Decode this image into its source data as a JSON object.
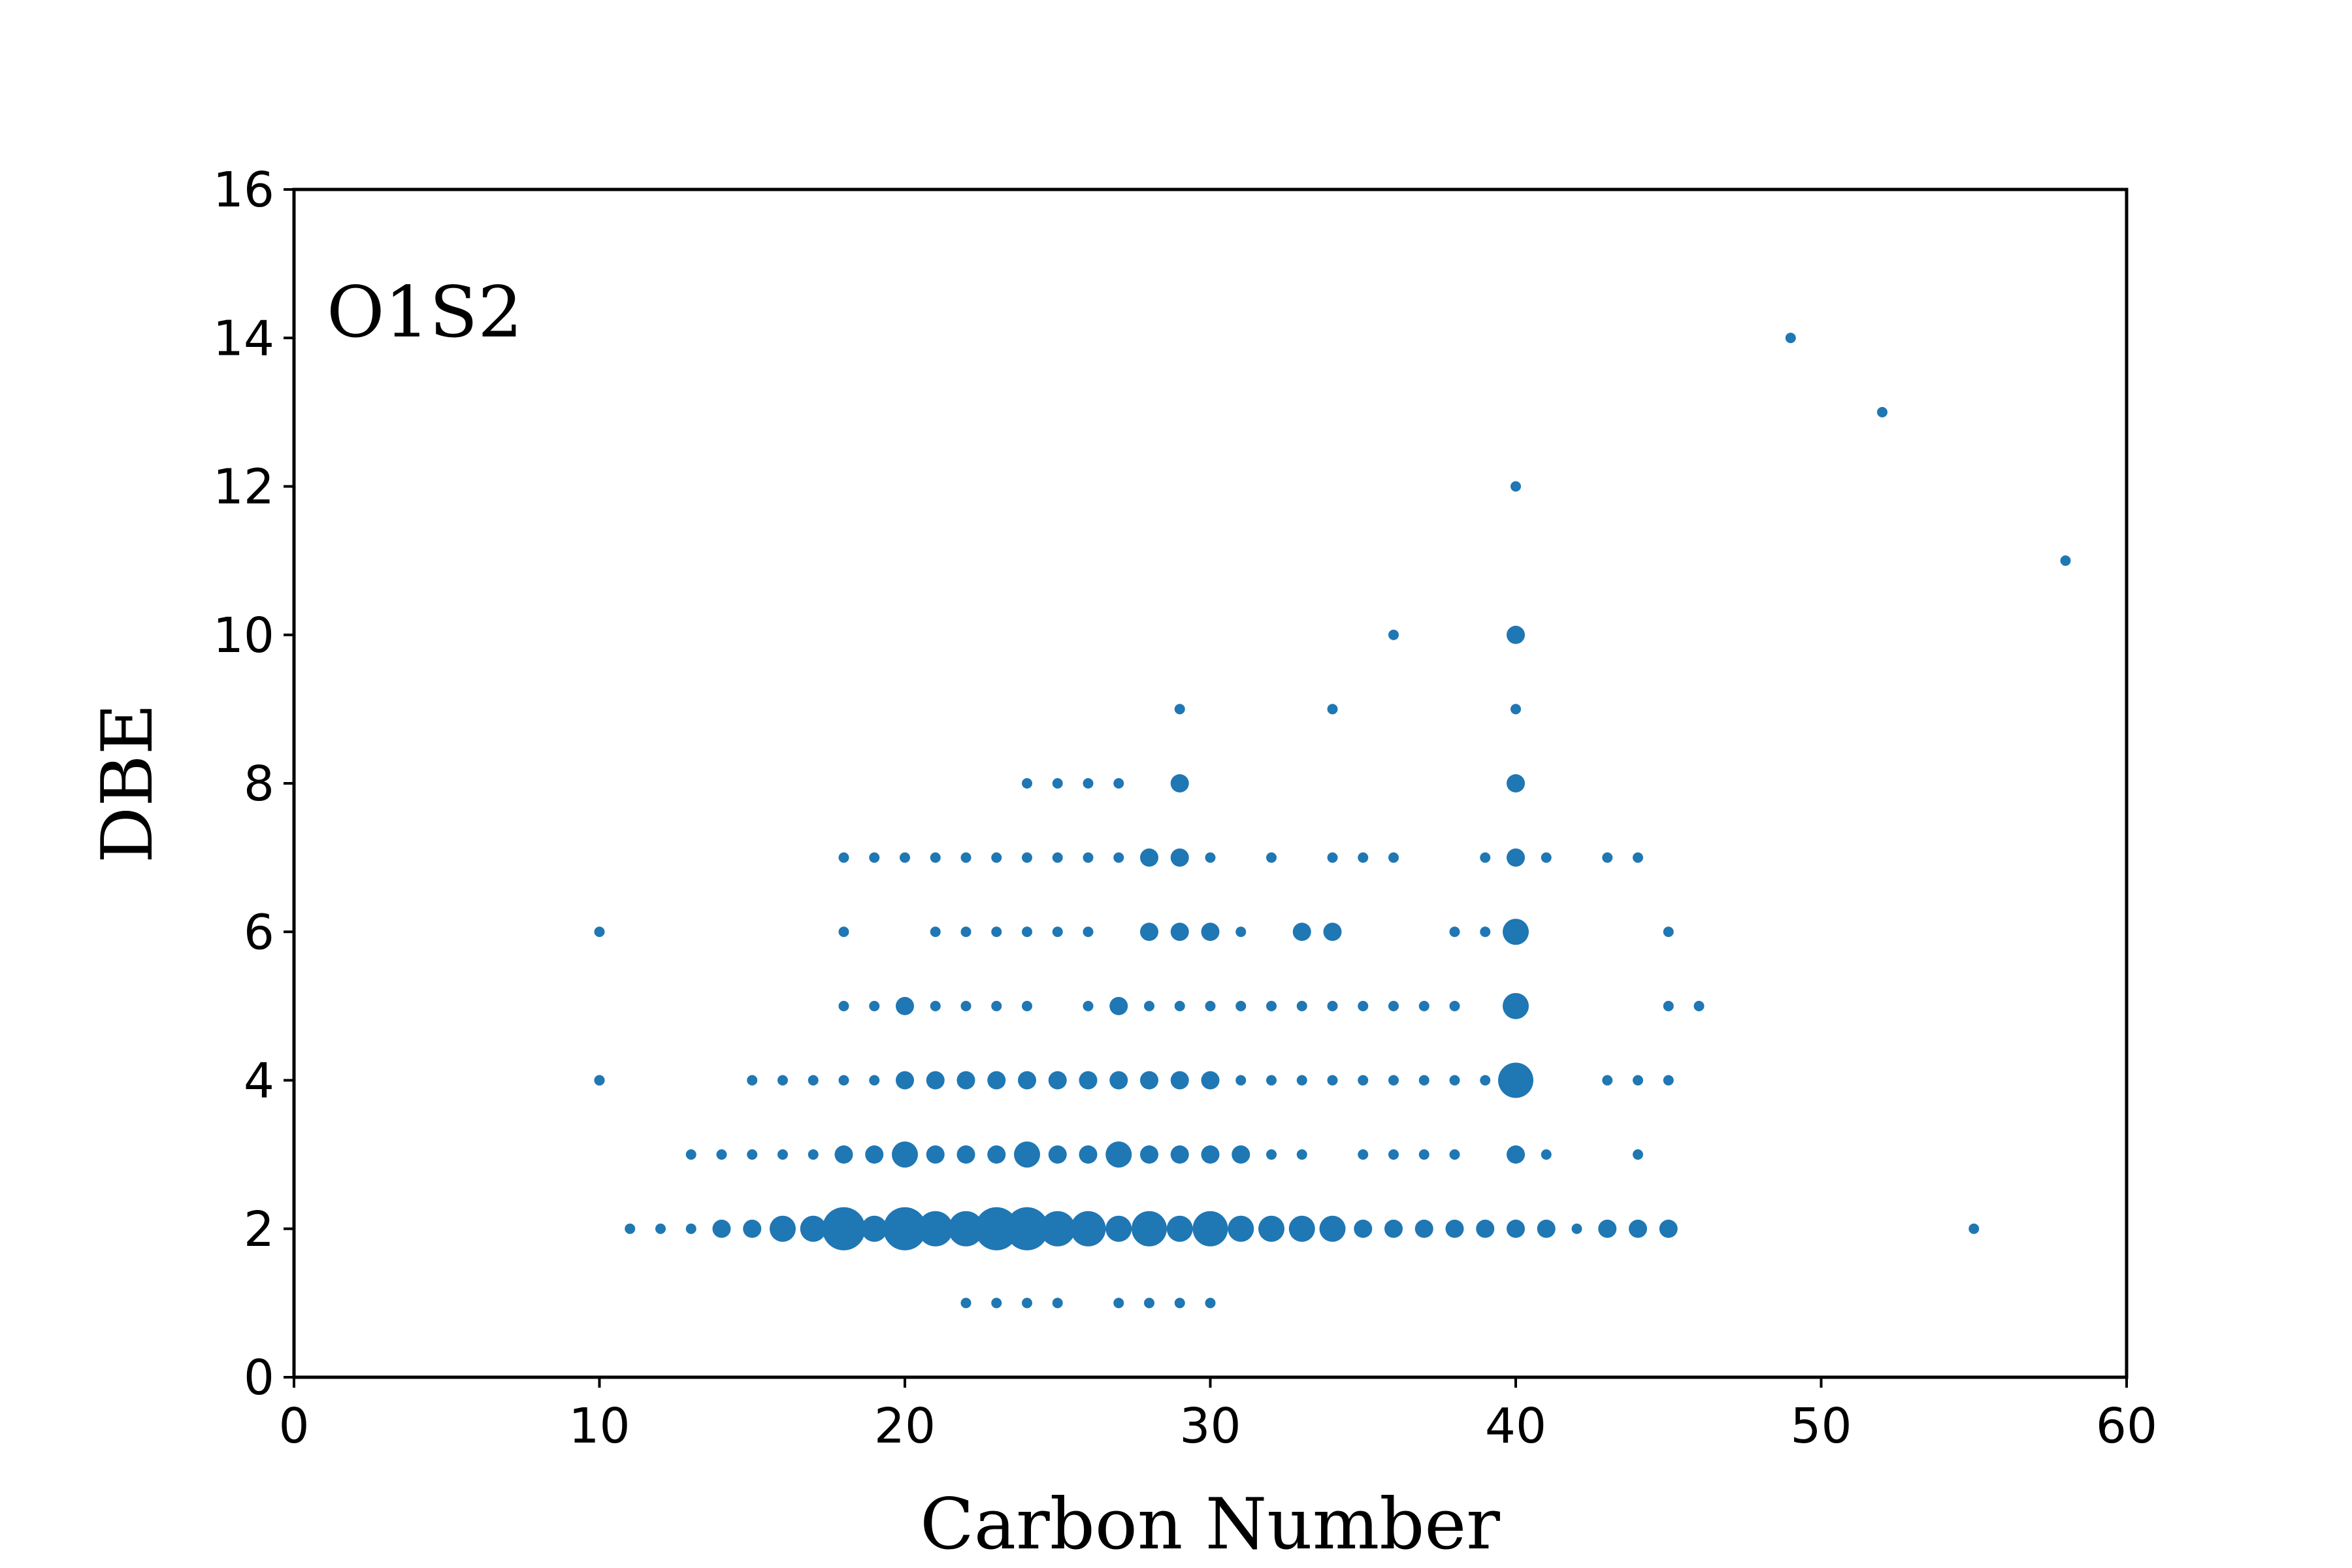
{
  "chart_data": {
    "type": "scatter",
    "title": "",
    "annotation": "O1S2",
    "xlabel": "Carbon Number",
    "ylabel": "DBE",
    "xlim": [
      0,
      60
    ],
    "ylim": [
      0,
      16
    ],
    "xticks": [
      0,
      10,
      20,
      30,
      40,
      50,
      60
    ],
    "yticks": [
      0,
      2,
      4,
      6,
      8,
      10,
      12,
      14,
      16
    ],
    "grid": false,
    "marker_color": "#1f77b4",
    "size_note": "marker size reflects relative abundance (1 = smallest, 5 = largest)",
    "points": [
      {
        "x": 10,
        "y": 6,
        "s": 1
      },
      {
        "x": 10,
        "y": 4,
        "s": 1
      },
      {
        "x": 49,
        "y": 14,
        "s": 1
      },
      {
        "x": 52,
        "y": 13,
        "s": 1
      },
      {
        "x": 58,
        "y": 11,
        "s": 1
      },
      {
        "x": 55,
        "y": 2,
        "s": 1
      },
      {
        "x": 40,
        "y": 12,
        "s": 1
      },
      {
        "x": 36,
        "y": 10,
        "s": 1
      },
      {
        "x": 40,
        "y": 10,
        "s": 2
      },
      {
        "x": 29,
        "y": 9,
        "s": 1
      },
      {
        "x": 34,
        "y": 9,
        "s": 1
      },
      {
        "x": 40,
        "y": 9,
        "s": 1
      },
      {
        "x": 24,
        "y": 8,
        "s": 1
      },
      {
        "x": 25,
        "y": 8,
        "s": 1
      },
      {
        "x": 26,
        "y": 8,
        "s": 1
      },
      {
        "x": 27,
        "y": 8,
        "s": 1
      },
      {
        "x": 29,
        "y": 8,
        "s": 2
      },
      {
        "x": 40,
        "y": 8,
        "s": 2
      },
      {
        "x": 18,
        "y": 7,
        "s": 1
      },
      {
        "x": 19,
        "y": 7,
        "s": 1
      },
      {
        "x": 20,
        "y": 7,
        "s": 1
      },
      {
        "x": 21,
        "y": 7,
        "s": 1
      },
      {
        "x": 22,
        "y": 7,
        "s": 1
      },
      {
        "x": 23,
        "y": 7,
        "s": 1
      },
      {
        "x": 24,
        "y": 7,
        "s": 1
      },
      {
        "x": 25,
        "y": 7,
        "s": 1
      },
      {
        "x": 26,
        "y": 7,
        "s": 1
      },
      {
        "x": 27,
        "y": 7,
        "s": 1
      },
      {
        "x": 28,
        "y": 7,
        "s": 2
      },
      {
        "x": 29,
        "y": 7,
        "s": 2
      },
      {
        "x": 30,
        "y": 7,
        "s": 1
      },
      {
        "x": 32,
        "y": 7,
        "s": 1
      },
      {
        "x": 34,
        "y": 7,
        "s": 1
      },
      {
        "x": 35,
        "y": 7,
        "s": 1
      },
      {
        "x": 36,
        "y": 7,
        "s": 1
      },
      {
        "x": 39,
        "y": 7,
        "s": 1
      },
      {
        "x": 40,
        "y": 7,
        "s": 2
      },
      {
        "x": 41,
        "y": 7,
        "s": 1
      },
      {
        "x": 43,
        "y": 7,
        "s": 1
      },
      {
        "x": 44,
        "y": 7,
        "s": 1
      },
      {
        "x": 18,
        "y": 6,
        "s": 1
      },
      {
        "x": 21,
        "y": 6,
        "s": 1
      },
      {
        "x": 22,
        "y": 6,
        "s": 1
      },
      {
        "x": 23,
        "y": 6,
        "s": 1
      },
      {
        "x": 24,
        "y": 6,
        "s": 1
      },
      {
        "x": 25,
        "y": 6,
        "s": 1
      },
      {
        "x": 26,
        "y": 6,
        "s": 1
      },
      {
        "x": 28,
        "y": 6,
        "s": 2
      },
      {
        "x": 29,
        "y": 6,
        "s": 2
      },
      {
        "x": 30,
        "y": 6,
        "s": 2
      },
      {
        "x": 31,
        "y": 6,
        "s": 1
      },
      {
        "x": 33,
        "y": 6,
        "s": 2
      },
      {
        "x": 34,
        "y": 6,
        "s": 2
      },
      {
        "x": 38,
        "y": 6,
        "s": 1
      },
      {
        "x": 39,
        "y": 6,
        "s": 1
      },
      {
        "x": 40,
        "y": 6,
        "s": 3
      },
      {
        "x": 45,
        "y": 6,
        "s": 1
      },
      {
        "x": 18,
        "y": 5,
        "s": 1
      },
      {
        "x": 19,
        "y": 5,
        "s": 1
      },
      {
        "x": 20,
        "y": 5,
        "s": 2
      },
      {
        "x": 21,
        "y": 5,
        "s": 1
      },
      {
        "x": 22,
        "y": 5,
        "s": 1
      },
      {
        "x": 23,
        "y": 5,
        "s": 1
      },
      {
        "x": 24,
        "y": 5,
        "s": 1
      },
      {
        "x": 26,
        "y": 5,
        "s": 1
      },
      {
        "x": 27,
        "y": 5,
        "s": 2
      },
      {
        "x": 28,
        "y": 5,
        "s": 1
      },
      {
        "x": 29,
        "y": 5,
        "s": 1
      },
      {
        "x": 30,
        "y": 5,
        "s": 1
      },
      {
        "x": 31,
        "y": 5,
        "s": 1
      },
      {
        "x": 32,
        "y": 5,
        "s": 1
      },
      {
        "x": 33,
        "y": 5,
        "s": 1
      },
      {
        "x": 34,
        "y": 5,
        "s": 1
      },
      {
        "x": 35,
        "y": 5,
        "s": 1
      },
      {
        "x": 36,
        "y": 5,
        "s": 1
      },
      {
        "x": 37,
        "y": 5,
        "s": 1
      },
      {
        "x": 38,
        "y": 5,
        "s": 1
      },
      {
        "x": 40,
        "y": 5,
        "s": 3
      },
      {
        "x": 45,
        "y": 5,
        "s": 1
      },
      {
        "x": 46,
        "y": 5,
        "s": 1
      },
      {
        "x": 10,
        "y": 4,
        "s": 1
      },
      {
        "x": 15,
        "y": 4,
        "s": 1
      },
      {
        "x": 16,
        "y": 4,
        "s": 1
      },
      {
        "x": 17,
        "y": 4,
        "s": 1
      },
      {
        "x": 18,
        "y": 4,
        "s": 1
      },
      {
        "x": 19,
        "y": 4,
        "s": 1
      },
      {
        "x": 20,
        "y": 4,
        "s": 2
      },
      {
        "x": 21,
        "y": 4,
        "s": 2
      },
      {
        "x": 22,
        "y": 4,
        "s": 2
      },
      {
        "x": 23,
        "y": 4,
        "s": 2
      },
      {
        "x": 24,
        "y": 4,
        "s": 2
      },
      {
        "x": 25,
        "y": 4,
        "s": 2
      },
      {
        "x": 26,
        "y": 4,
        "s": 2
      },
      {
        "x": 27,
        "y": 4,
        "s": 2
      },
      {
        "x": 28,
        "y": 4,
        "s": 2
      },
      {
        "x": 29,
        "y": 4,
        "s": 2
      },
      {
        "x": 30,
        "y": 4,
        "s": 2
      },
      {
        "x": 31,
        "y": 4,
        "s": 1
      },
      {
        "x": 32,
        "y": 4,
        "s": 1
      },
      {
        "x": 33,
        "y": 4,
        "s": 1
      },
      {
        "x": 34,
        "y": 4,
        "s": 1
      },
      {
        "x": 35,
        "y": 4,
        "s": 1
      },
      {
        "x": 36,
        "y": 4,
        "s": 1
      },
      {
        "x": 37,
        "y": 4,
        "s": 1
      },
      {
        "x": 38,
        "y": 4,
        "s": 1
      },
      {
        "x": 39,
        "y": 4,
        "s": 1
      },
      {
        "x": 40,
        "y": 4,
        "s": 4
      },
      {
        "x": 43,
        "y": 4,
        "s": 1
      },
      {
        "x": 44,
        "y": 4,
        "s": 1
      },
      {
        "x": 45,
        "y": 4,
        "s": 1
      },
      {
        "x": 13,
        "y": 3,
        "s": 1
      },
      {
        "x": 14,
        "y": 3,
        "s": 1
      },
      {
        "x": 15,
        "y": 3,
        "s": 1
      },
      {
        "x": 16,
        "y": 3,
        "s": 1
      },
      {
        "x": 17,
        "y": 3,
        "s": 1
      },
      {
        "x": 18,
        "y": 3,
        "s": 2
      },
      {
        "x": 19,
        "y": 3,
        "s": 2
      },
      {
        "x": 20,
        "y": 3,
        "s": 3
      },
      {
        "x": 21,
        "y": 3,
        "s": 2
      },
      {
        "x": 22,
        "y": 3,
        "s": 2
      },
      {
        "x": 23,
        "y": 3,
        "s": 2
      },
      {
        "x": 24,
        "y": 3,
        "s": 3
      },
      {
        "x": 25,
        "y": 3,
        "s": 2
      },
      {
        "x": 26,
        "y": 3,
        "s": 2
      },
      {
        "x": 27,
        "y": 3,
        "s": 3
      },
      {
        "x": 28,
        "y": 3,
        "s": 2
      },
      {
        "x": 29,
        "y": 3,
        "s": 2
      },
      {
        "x": 30,
        "y": 3,
        "s": 2
      },
      {
        "x": 31,
        "y": 3,
        "s": 2
      },
      {
        "x": 32,
        "y": 3,
        "s": 1
      },
      {
        "x": 33,
        "y": 3,
        "s": 1
      },
      {
        "x": 35,
        "y": 3,
        "s": 1
      },
      {
        "x": 36,
        "y": 3,
        "s": 1
      },
      {
        "x": 37,
        "y": 3,
        "s": 1
      },
      {
        "x": 38,
        "y": 3,
        "s": 1
      },
      {
        "x": 40,
        "y": 3,
        "s": 2
      },
      {
        "x": 41,
        "y": 3,
        "s": 1
      },
      {
        "x": 44,
        "y": 3,
        "s": 1
      },
      {
        "x": 11,
        "y": 2,
        "s": 1
      },
      {
        "x": 12,
        "y": 2,
        "s": 1
      },
      {
        "x": 13,
        "y": 2,
        "s": 1
      },
      {
        "x": 14,
        "y": 2,
        "s": 2
      },
      {
        "x": 15,
        "y": 2,
        "s": 2
      },
      {
        "x": 16,
        "y": 2,
        "s": 3
      },
      {
        "x": 17,
        "y": 2,
        "s": 3
      },
      {
        "x": 18,
        "y": 2,
        "s": 5
      },
      {
        "x": 19,
        "y": 2,
        "s": 3
      },
      {
        "x": 20,
        "y": 2,
        "s": 5
      },
      {
        "x": 21,
        "y": 2,
        "s": 4
      },
      {
        "x": 22,
        "y": 2,
        "s": 4
      },
      {
        "x": 23,
        "y": 2,
        "s": 5
      },
      {
        "x": 24,
        "y": 2,
        "s": 5
      },
      {
        "x": 25,
        "y": 2,
        "s": 4
      },
      {
        "x": 26,
        "y": 2,
        "s": 4
      },
      {
        "x": 27,
        "y": 2,
        "s": 3
      },
      {
        "x": 28,
        "y": 2,
        "s": 4
      },
      {
        "x": 29,
        "y": 2,
        "s": 3
      },
      {
        "x": 30,
        "y": 2,
        "s": 4
      },
      {
        "x": 31,
        "y": 2,
        "s": 3
      },
      {
        "x": 32,
        "y": 2,
        "s": 3
      },
      {
        "x": 33,
        "y": 2,
        "s": 3
      },
      {
        "x": 34,
        "y": 2,
        "s": 3
      },
      {
        "x": 35,
        "y": 2,
        "s": 2
      },
      {
        "x": 36,
        "y": 2,
        "s": 2
      },
      {
        "x": 37,
        "y": 2,
        "s": 2
      },
      {
        "x": 38,
        "y": 2,
        "s": 2
      },
      {
        "x": 39,
        "y": 2,
        "s": 2
      },
      {
        "x": 40,
        "y": 2,
        "s": 2
      },
      {
        "x": 41,
        "y": 2,
        "s": 2
      },
      {
        "x": 42,
        "y": 2,
        "s": 1
      },
      {
        "x": 43,
        "y": 2,
        "s": 2
      },
      {
        "x": 44,
        "y": 2,
        "s": 2
      },
      {
        "x": 45,
        "y": 2,
        "s": 2
      },
      {
        "x": 22,
        "y": 1,
        "s": 1
      },
      {
        "x": 23,
        "y": 1,
        "s": 1
      },
      {
        "x": 24,
        "y": 1,
        "s": 1
      },
      {
        "x": 25,
        "y": 1,
        "s": 1
      },
      {
        "x": 27,
        "y": 1,
        "s": 1
      },
      {
        "x": 28,
        "y": 1,
        "s": 1
      },
      {
        "x": 29,
        "y": 1,
        "s": 1
      },
      {
        "x": 30,
        "y": 1,
        "s": 1
      }
    ]
  }
}
